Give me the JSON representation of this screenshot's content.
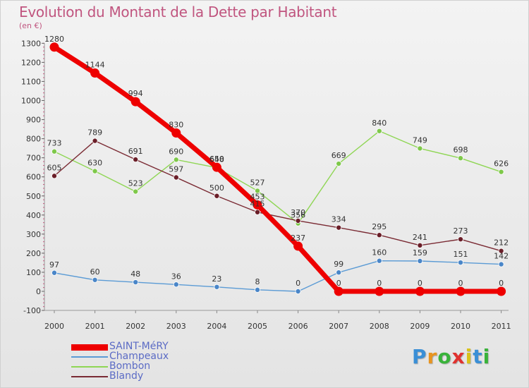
{
  "title": "Evolution du Montant de la Dette par Habitant",
  "unit": "(en €)",
  "logo": {
    "letters": [
      "P",
      "r",
      "o",
      "x",
      "i",
      "t",
      "i"
    ],
    "colors": [
      "#3a8fd6",
      "#e8941f",
      "#39b33a",
      "#e0322f",
      "#d9c21a",
      "#3a8fd6",
      "#39b33a"
    ]
  },
  "chart_data": {
    "type": "line",
    "x": [
      "2000",
      "2001",
      "2002",
      "2003",
      "2004",
      "2005",
      "2006",
      "2007",
      "2008",
      "2009",
      "2010",
      "2011"
    ],
    "ylim": [
      -100,
      1300
    ],
    "yticks": [
      -100,
      0,
      100,
      200,
      300,
      400,
      500,
      600,
      700,
      800,
      900,
      1000,
      1100,
      1200,
      1300
    ],
    "grid": false,
    "legend": "bottom-left",
    "series": [
      {
        "name": "Champeaux",
        "color": "#5b9bd5",
        "marker": "#4a86c8",
        "width": 1.4,
        "values": [
          97,
          60,
          48,
          36,
          23,
          8,
          0,
          99,
          160,
          159,
          151,
          142
        ]
      },
      {
        "name": "Bombon",
        "color": "#8fd654",
        "marker": "#7ec84a",
        "width": 1.4,
        "values": [
          733,
          630,
          523,
          690,
          648,
          527,
          356,
          669,
          840,
          749,
          698,
          626
        ]
      },
      {
        "name": "Blandy",
        "color": "#7a2a33",
        "marker": "#6a1e28",
        "width": 1.4,
        "values": [
          605,
          789,
          691,
          597,
          500,
          415,
          370,
          334,
          295,
          241,
          273,
          212
        ]
      },
      {
        "name": "SAINT-MéRY",
        "color": "#ee0000",
        "marker": "#ee0000",
        "width": 7,
        "values": [
          1280,
          1144,
          994,
          830,
          650,
          453,
          237,
          0,
          0,
          0,
          0,
          0
        ]
      }
    ],
    "legend_order": [
      3,
      0,
      1,
      2
    ]
  }
}
